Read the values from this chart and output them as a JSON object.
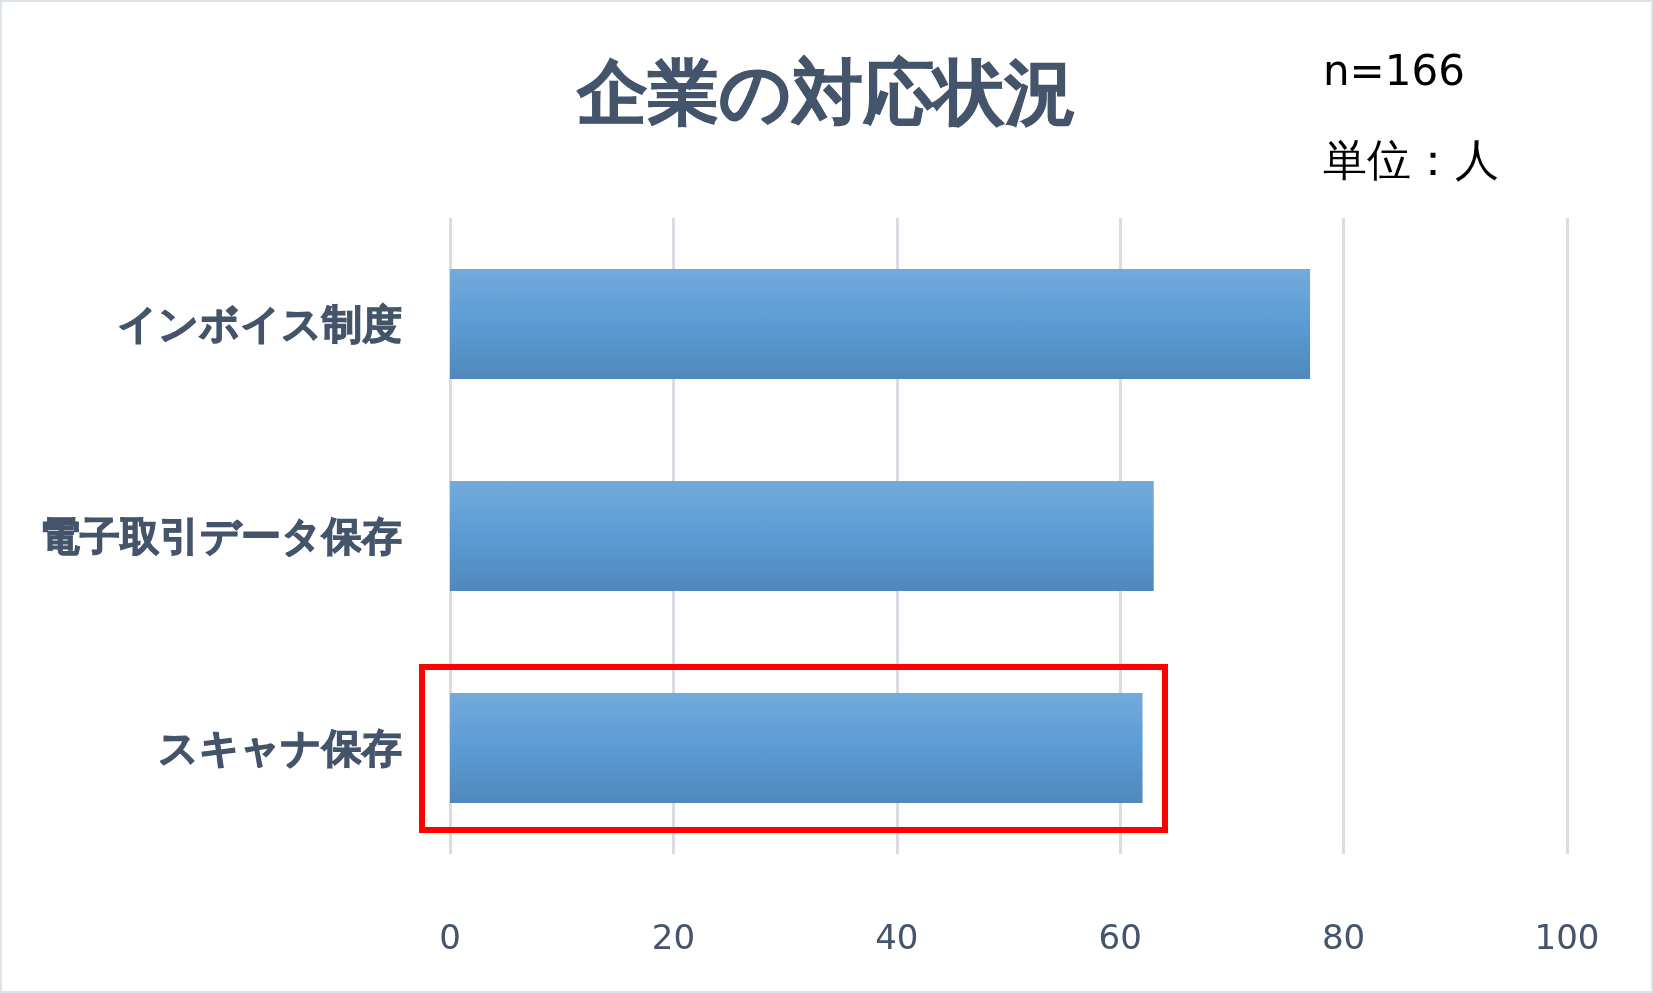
{
  "chart_data": {
    "type": "bar",
    "orientation": "horizontal",
    "title": "企業の対応状況",
    "subtitle": "n=166",
    "annotations": [
      "単位：人"
    ],
    "categories": [
      "インボイス制度",
      "電子取引データ保存",
      "スキャナ保存"
    ],
    "values": [
      77,
      63,
      62
    ],
    "color": "#5b9bd5",
    "xlim": [
      0,
      100
    ],
    "xticks": [
      0,
      20,
      40,
      60,
      80,
      100
    ],
    "grid": "x",
    "bands": [
      {
        "axis": "y",
        "from": "スキャナ保存",
        "to": "スキャナ保存",
        "color": "#ff0000"
      }
    ]
  }
}
